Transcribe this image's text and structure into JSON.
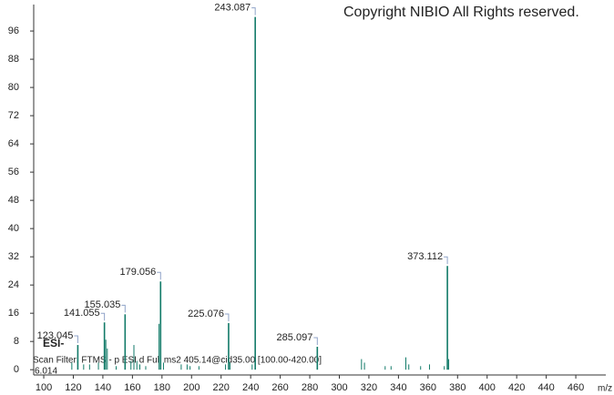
{
  "chart_data": {
    "type": "spectrum",
    "title": "Copyright NIBIO All Rights reserved.",
    "ionization": "ESI-",
    "scan_filter": "Scan Filter: FTMS - p ESI d Full ms2 405.14@cid35.00 [100.00-420.00]",
    "retention_time": "6.014",
    "x_label": "m/z",
    "color": "#117a68",
    "label_color": "#1c2a9c",
    "labeled_peaks": {
      "x": [
        123.045,
        141.055,
        155.035,
        179.056,
        225.076,
        243.087,
        285.097,
        373.112
      ],
      "values": [
        7,
        13.4,
        15.7,
        25,
        13.2,
        100,
        6.5,
        29.4
      ]
    },
    "other_peaks": {
      "x": [
        119,
        127,
        131,
        137,
        142,
        143,
        149,
        159,
        161,
        163,
        165,
        169,
        178,
        181,
        193,
        197,
        199,
        205,
        223,
        226,
        241,
        315,
        317,
        331,
        335,
        345,
        347,
        355,
        361,
        371,
        374
      ],
      "values": [
        2,
        1.5,
        1.5,
        2,
        8.5,
        6,
        1,
        2.5,
        7,
        2.5,
        1.5,
        1,
        13,
        2,
        1.5,
        1.5,
        1,
        1,
        1.5,
        2,
        1.5,
        3,
        2,
        1,
        1,
        3.5,
        1.5,
        1,
        1.5,
        1,
        3
      ]
    },
    "xlim": [
      93.2,
      480.3
    ],
    "ylim": [
      -1.5,
      103.5
    ],
    "xticks": [
      100,
      120,
      140,
      160,
      180,
      200,
      220,
      240,
      260,
      280,
      300,
      320,
      340,
      360,
      380,
      400,
      420,
      440,
      460
    ],
    "yticks": [
      0,
      8,
      16,
      24,
      32,
      40,
      48,
      56,
      64,
      72,
      80,
      88,
      96
    ]
  }
}
